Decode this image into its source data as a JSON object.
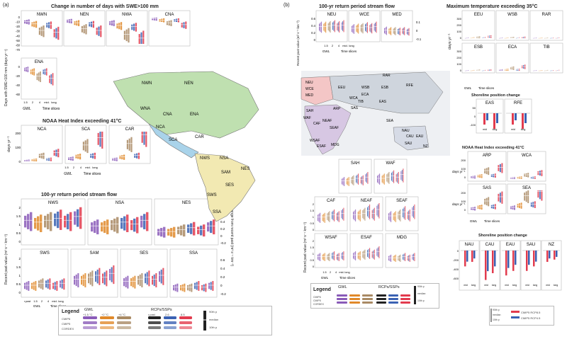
{
  "colors": {
    "gwl15": "#8a5bb8",
    "gwl2": "#e0892a",
    "gwl4": "#a98a64",
    "rpast": "#222222",
    "rcp26": "#3b62b3",
    "rcp85": "#e23b4e",
    "land_na": "#bfe0b0",
    "land_sa": "#f2e9b2",
    "land_ca": "#a9d3ea",
    "land_eu": "#f4c6c6",
    "land_af": "#d7c7e3",
    "land_as": "#cfd5dd",
    "land_au": "#d6dbe6",
    "map_bg": "#d9dde3"
  },
  "a": {
    "label": "(a)",
    "swe_title": "Change in number of days with SWE>100 mm",
    "swe_regions": [
      "NWN",
      "NEN",
      "NWA",
      "CNA",
      "ENA"
    ],
    "swe_ylabel": "Days with SWE>100 mm (days yr⁻¹)",
    "swe_ticks": [
      "0",
      "-10",
      "-20",
      "-30",
      "-40",
      "-50",
      "-60",
      "-70"
    ],
    "heat_title": "NOAA Heat Index exceeding 41°C",
    "heat_regions": [
      "NCA",
      "SCA",
      "CAR"
    ],
    "heat_ylabel": "days yr⁻¹",
    "heat_ticks": [
      "200",
      "100",
      "0"
    ],
    "flow_title": "100-yr return period stream flow",
    "flow_regions_top": [
      "NWS",
      "NSA",
      "NES"
    ],
    "flow_regions_bot": [
      "SWS",
      "SAM",
      "SES",
      "SSA"
    ],
    "flow_ylabel": "Recent past value (m³ s⁻¹ km⁻²)",
    "flow_y2label": "Change from recent past (m³ s⁻¹ km⁻²)",
    "flow_ticks_top": [
      "2",
      "1.5",
      "1",
      "0.5",
      "0"
    ],
    "flow_ticks_right_top": [
      "0.8",
      "0.6",
      "0.4",
      "0.2",
      "0",
      "-0.2"
    ],
    "flow_ticks_bot": [
      "2",
      "1.5",
      "1",
      "0.5",
      "0"
    ],
    "flow_ticks_right_bot": [
      "0.6",
      "0.4",
      "0.2",
      "0",
      "-0.2"
    ],
    "x_gwl": "GWL",
    "x_time": "Time slices",
    "x_ticks": [
      "1.5",
      "2",
      "4",
      "mid.",
      "long"
    ],
    "x_rpast": "r.past",
    "map_labels": [
      "NWN",
      "NEN",
      "WNA",
      "CNA",
      "ENA",
      "NCA",
      "SCA",
      "CAR",
      "NWS",
      "NSA",
      "SAM",
      "NES",
      "SES",
      "SWS",
      "SSA"
    ]
  },
  "b": {
    "label": "(b)",
    "flow_title": "100-yr return period stream flow",
    "flow_regions": [
      "NEU",
      "WCE",
      "MED"
    ],
    "flow_ylabel": "Recent past value (m³ s⁻¹ km⁻²)",
    "flow_y2label": "Change from recent past (m³ s⁻¹ km⁻²)",
    "flow_ticks": [
      "0.6",
      "0.4",
      "0.2",
      "0"
    ],
    "flow_ticks_right": [
      "0.1",
      "0",
      "-0.1"
    ],
    "temp_title": "Maximum temperature exceeding 35°C",
    "temp_regions_top": [
      "EEU",
      "WSB",
      "RAR"
    ],
    "temp_regions_bot": [
      "ESB",
      "ECA",
      "TIB"
    ],
    "temp_ylabel": "days yr⁻¹",
    "temp_ticks": [
      "300",
      "200",
      "100",
      "0"
    ],
    "shore_title": "Shoreline position change",
    "shore_regions_top": [
      "EAS",
      "RFE"
    ],
    "shore_ylabel": "Average shoreline position change (m)",
    "shore_ticks": [
      "50",
      "0",
      "-100"
    ],
    "heat_title": "NOAA Heat Index exceeding 41°C",
    "heat_regions_top": [
      "ARP",
      "WCA"
    ],
    "heat_regions_bot": [
      "SAS",
      "SEA"
    ],
    "heat_ylabel": "days yr⁻¹",
    "heat_ticks": [
      "200",
      "100",
      "0"
    ],
    "af_regions_top": [
      "SAH",
      "WAF"
    ],
    "af_regions_mid": [
      "CAF",
      "NEAF",
      "SEAF"
    ],
    "af_regions_bot": [
      "WSAF",
      "ESAF",
      "MDG"
    ],
    "af_ylabel": "Recent past value (m³ s⁻¹ km⁻²)",
    "af_y2label": "Change from recent past (m³ s⁻¹ km⁻²)",
    "af_ticks": [
      "2",
      "1.5",
      "1",
      "0.5",
      "0"
    ],
    "shore2_title": "Shoreline position change",
    "shore2_regions": [
      "NAU",
      "CAU",
      "EAU",
      "SAU",
      "NZ"
    ],
    "shore2_ticks": [
      "0",
      "-200",
      "-400",
      "-600"
    ],
    "x_mid": "mid. term",
    "x_long": "long term",
    "map_labels": [
      "RAR",
      "NEU",
      "WCE",
      "EEU",
      "WSB",
      "ESB",
      "RFE",
      "MED",
      "WCA",
      "ECA",
      "TIB",
      "EAS",
      "SAH",
      "ARP",
      "SAS",
      "WAF",
      "CAF",
      "NEAF",
      "SEA",
      "SEAF",
      "NAU",
      "CAU",
      "EAU",
      "SAU",
      "NZ",
      "WSAF",
      "ESAF",
      "MDG"
    ]
  },
  "legend": {
    "title": "Legend",
    "gwl_head": "GWL",
    "gwl_items": [
      "+1.5 °C",
      "+2 °C",
      "+4 °C"
    ],
    "models": [
      "CMIP6",
      "CMIP5",
      "CORDEX"
    ],
    "rcp_head": "RCPs/SSPs",
    "rcp_items": [
      "r.past",
      "2.6",
      "8.5"
    ],
    "pct": [
      "90th p",
      "median",
      "10th p"
    ],
    "shore_items": [
      "CMIP5 RCP8.5",
      "CMIP5 RCP4.5"
    ]
  },
  "chart_data": [
    {
      "type": "bar",
      "panel": "a-swe",
      "title": "Change in number of days with SWE>100 mm",
      "ylabel": "Days with SWE>100 mm (days yr⁻¹)",
      "ylim": [
        -70,
        0
      ],
      "categories": [
        "1.5",
        "2",
        "4",
        "mid.",
        "long"
      ],
      "series": [
        {
          "name": "NWN",
          "values": [
            -12,
            -18,
            -35,
            -20,
            -40
          ]
        },
        {
          "name": "NEN",
          "values": [
            -10,
            -15,
            -30,
            -18,
            -35
          ]
        },
        {
          "name": "NWA",
          "values": [
            -15,
            -22,
            -45,
            -25,
            -55
          ]
        },
        {
          "name": "CNA",
          "values": [
            -5,
            -8,
            -15,
            -8,
            -20
          ]
        },
        {
          "name": "ENA",
          "values": [
            -10,
            -15,
            -25,
            -15,
            -30
          ]
        }
      ]
    },
    {
      "type": "bar",
      "panel": "a-heat",
      "title": "NOAA Heat Index exceeding 41°C",
      "ylabel": "days yr⁻¹",
      "ylim": [
        0,
        200
      ],
      "categories": [
        "1.5",
        "2",
        "4",
        "mid.",
        "long"
      ],
      "series": [
        {
          "name": "NCA",
          "values": [
            5,
            10,
            40,
            15,
            60
          ]
        },
        {
          "name": "SCA",
          "values": [
            20,
            35,
            110,
            40,
            160
          ]
        },
        {
          "name": "CAR",
          "values": [
            15,
            30,
            120,
            40,
            180
          ]
        }
      ]
    },
    {
      "type": "bar",
      "panel": "a-flow",
      "title": "100-yr return period stream flow",
      "ylabel": "Recent past value (m³ s⁻¹ km⁻²)",
      "ylim": [
        0,
        2
      ],
      "categories": [
        "r.past",
        "1.5",
        "2",
        "4",
        "mid.",
        "long"
      ],
      "series": [
        {
          "name": "NWS",
          "values": [
            1.2,
            1.1,
            1.2,
            1.3,
            1.2,
            1.4
          ]
        },
        {
          "name": "NSA",
          "values": [
            0.9,
            0.9,
            1.0,
            1.1,
            1.0,
            1.2
          ]
        },
        {
          "name": "NES",
          "values": [
            0.6,
            0.6,
            0.7,
            0.8,
            0.7,
            0.9
          ]
        },
        {
          "name": "SWS",
          "values": [
            0.5,
            0.5,
            0.6,
            0.6,
            0.5,
            0.6
          ]
        },
        {
          "name": "SAM",
          "values": [
            0.8,
            0.8,
            0.9,
            1.0,
            0.9,
            1.1
          ]
        },
        {
          "name": "SES",
          "values": [
            0.7,
            0.7,
            0.8,
            0.9,
            0.8,
            1.0
          ]
        },
        {
          "name": "SSA",
          "values": [
            0.4,
            0.4,
            0.4,
            0.5,
            0.4,
            0.5
          ]
        }
      ]
    },
    {
      "type": "bar",
      "panel": "b-flow",
      "title": "100-yr return period stream flow",
      "ylim": [
        0,
        0.6
      ],
      "categories": [
        "r.past",
        "1.5",
        "2",
        "4",
        "mid.",
        "long"
      ],
      "series": [
        {
          "name": "NEU",
          "values": [
            0.35,
            0.35,
            0.36,
            0.38,
            0.36,
            0.38
          ]
        },
        {
          "name": "WCE",
          "values": [
            0.3,
            0.31,
            0.32,
            0.34,
            0.32,
            0.35
          ]
        },
        {
          "name": "MED",
          "values": [
            0.25,
            0.24,
            0.24,
            0.23,
            0.24,
            0.22
          ]
        }
      ]
    },
    {
      "type": "bar",
      "panel": "b-temp",
      "title": "Maximum temperature exceeding 35°C",
      "ylabel": "days yr⁻¹",
      "ylim": [
        0,
        300
      ],
      "categories": [
        "1.5",
        "2",
        "4",
        "mid.",
        "long"
      ],
      "series": [
        {
          "name": "EEU",
          "values": [
            2,
            4,
            15,
            5,
            25
          ]
        },
        {
          "name": "WSB",
          "values": [
            1,
            2,
            8,
            3,
            12
          ]
        },
        {
          "name": "RAR",
          "values": [
            0,
            0,
            1,
            0,
            2
          ]
        },
        {
          "name": "ESB",
          "values": [
            1,
            2,
            6,
            2,
            10
          ]
        },
        {
          "name": "ECA",
          "values": [
            10,
            15,
            40,
            15,
            60
          ]
        },
        {
          "name": "TIB",
          "values": [
            0,
            0,
            2,
            0,
            3
          ]
        }
      ]
    },
    {
      "type": "bar",
      "panel": "b-heat",
      "title": "NOAA Heat Index exceeding 41°C",
      "ylabel": "days yr⁻¹",
      "ylim": [
        0,
        200
      ],
      "categories": [
        "1.5",
        "2",
        "4",
        "mid.",
        "long"
      ],
      "series": [
        {
          "name": "ARP",
          "values": [
            20,
            30,
            80,
            35,
            110
          ]
        },
        {
          "name": "WCA",
          "values": [
            10,
            15,
            40,
            15,
            60
          ]
        },
        {
          "name": "SAS",
          "values": [
            30,
            45,
            100,
            50,
            140
          ]
        },
        {
          "name": "SEA",
          "values": [
            40,
            60,
            150,
            70,
            190
          ]
        }
      ]
    }
  ]
}
